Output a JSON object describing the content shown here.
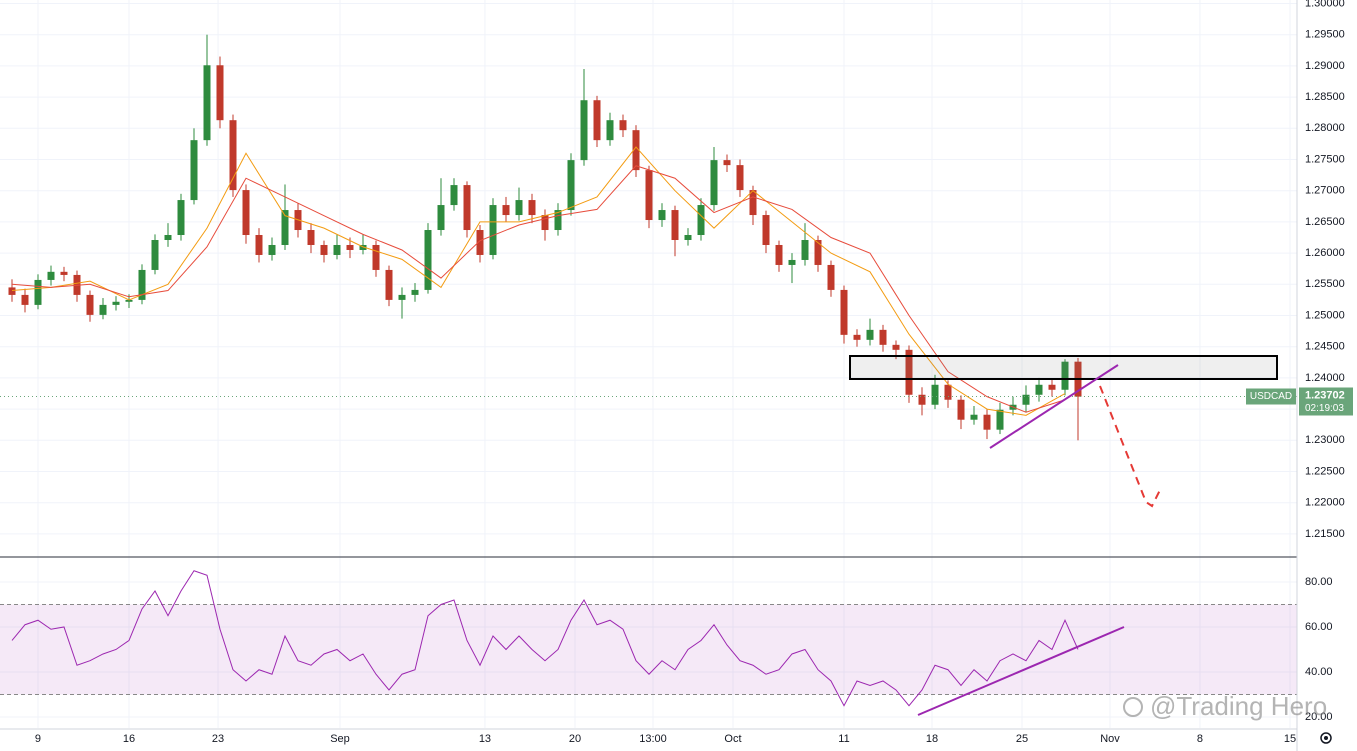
{
  "chart_data": {
    "type": "candlestick",
    "symbol": "USDCAD",
    "last_price": {
      "value": 1.23702,
      "label": "1.23702"
    },
    "countdown": "02:19:03",
    "watermark": "@Trading Hero",
    "up_color": "#2e8b3e",
    "down_color": "#c0392b",
    "label_color": "#6aa57a",
    "grid": true,
    "xlim": [
      -2.923,
      96.846
    ],
    "xticks": [
      {
        "value": 0,
        "label": "9"
      },
      {
        "value": 7,
        "label": "16"
      },
      {
        "value": 13.85,
        "label": "23"
      },
      {
        "value": 23.23,
        "label": "Sep"
      },
      {
        "value": 34.38,
        "label": "13"
      },
      {
        "value": 41.31,
        "label": "20"
      },
      {
        "value": 47.31,
        "label": "13:00"
      },
      {
        "value": 53.46,
        "label": "Oct"
      },
      {
        "value": 62,
        "label": "11"
      },
      {
        "value": 68.77,
        "label": "18"
      },
      {
        "value": 75.69,
        "label": "25"
      },
      {
        "value": 82.46,
        "label": "Nov"
      },
      {
        "value": 89.38,
        "label": "8"
      },
      {
        "value": 96.31,
        "label": "15"
      }
    ],
    "ylim": [
      1.2113,
      1.30056
    ],
    "yticks": [
      {
        "value": 1.3,
        "label": "1.30000"
      },
      {
        "value": 1.295,
        "label": "1.29500"
      },
      {
        "value": 1.29,
        "label": "1.29000"
      },
      {
        "value": 1.285,
        "label": "1.28500"
      },
      {
        "value": 1.28,
        "label": "1.28000"
      },
      {
        "value": 1.275,
        "label": "1.27500"
      },
      {
        "value": 1.27,
        "label": "1.27000"
      },
      {
        "value": 1.265,
        "label": "1.26500"
      },
      {
        "value": 1.26,
        "label": "1.26000"
      },
      {
        "value": 1.255,
        "label": "1.25500"
      },
      {
        "value": 1.25,
        "label": "1.25000"
      },
      {
        "value": 1.245,
        "label": "1.24500"
      },
      {
        "value": 1.24,
        "label": "1.24000"
      },
      {
        "value": 1.235,
        "label": "1.23500"
      },
      {
        "value": 1.23,
        "label": "1.23000"
      },
      {
        "value": 1.225,
        "label": "1.22500"
      },
      {
        "value": 1.22,
        "label": "1.22000"
      },
      {
        "value": 1.215,
        "label": "1.21500"
      }
    ],
    "x": [
      -2,
      -1,
      0,
      1,
      2,
      3,
      4,
      5,
      6,
      7,
      8,
      9,
      10,
      11,
      12,
      13,
      14,
      15,
      16,
      17,
      18,
      19,
      20,
      21,
      22,
      23,
      24,
      25,
      26,
      27,
      28,
      29,
      30,
      31,
      32,
      33,
      34,
      35,
      36,
      37,
      38,
      39,
      40,
      41,
      42,
      43,
      44,
      45,
      46,
      47,
      48,
      49,
      50,
      51,
      52,
      53,
      54,
      55,
      56,
      57,
      58,
      59,
      60,
      61,
      62,
      63,
      64,
      65,
      66,
      67,
      68,
      69,
      70,
      71,
      72,
      73,
      74,
      75,
      76,
      77,
      78,
      79,
      80
    ],
    "candles": [
      [
        1.2545,
        1.2558,
        1.2522,
        1.2533
      ],
      [
        1.2533,
        1.2543,
        1.2505,
        1.2517
      ],
      [
        1.2517,
        1.2566,
        1.251,
        1.2557
      ],
      [
        1.2557,
        1.258,
        1.2548,
        1.257
      ],
      [
        1.257,
        1.2578,
        1.2555,
        1.2565
      ],
      [
        1.2565,
        1.2572,
        1.2522,
        1.2533
      ],
      [
        1.2533,
        1.254,
        1.249,
        1.2501
      ],
      [
        1.2501,
        1.2528,
        1.2494,
        1.2517
      ],
      [
        1.2517,
        1.2531,
        1.2508,
        1.2522
      ],
      [
        1.2522,
        1.2534,
        1.2512,
        1.2525
      ],
      [
        1.2525,
        1.2582,
        1.2518,
        1.2573
      ],
      [
        1.2573,
        1.263,
        1.2566,
        1.2621
      ],
      [
        1.2621,
        1.2648,
        1.261,
        1.2629
      ],
      [
        1.2629,
        1.2695,
        1.262,
        1.2685
      ],
      [
        1.2685,
        1.28,
        1.2678,
        1.2781
      ],
      [
        1.2781,
        1.295,
        1.2772,
        1.2901
      ],
      [
        1.2901,
        1.2915,
        1.28,
        1.2813
      ],
      [
        1.2813,
        1.2822,
        1.269,
        1.2701
      ],
      [
        1.2701,
        1.271,
        1.2615,
        1.2629
      ],
      [
        1.2629,
        1.264,
        1.2585,
        1.2597
      ],
      [
        1.2597,
        1.2625,
        1.2588,
        1.2613
      ],
      [
        1.2613,
        1.271,
        1.2605,
        1.2669
      ],
      [
        1.2669,
        1.268,
        1.2625,
        1.2637
      ],
      [
        1.2637,
        1.2648,
        1.26,
        1.2613
      ],
      [
        1.2613,
        1.262,
        1.2585,
        1.2597
      ],
      [
        1.2597,
        1.263,
        1.259,
        1.2613
      ],
      [
        1.2613,
        1.2625,
        1.2592,
        1.2605
      ],
      [
        1.2605,
        1.263,
        1.2598,
        1.2613
      ],
      [
        1.2613,
        1.262,
        1.2562,
        1.2573
      ],
      [
        1.2573,
        1.258,
        1.2515,
        1.2525
      ],
      [
        1.2525,
        1.2545,
        1.2495,
        1.2533
      ],
      [
        1.2533,
        1.2552,
        1.2522,
        1.2541
      ],
      [
        1.2541,
        1.2648,
        1.2535,
        1.2637
      ],
      [
        1.2637,
        1.272,
        1.2628,
        1.2677
      ],
      [
        1.2677,
        1.272,
        1.2668,
        1.2709
      ],
      [
        1.2709,
        1.2715,
        1.2625,
        1.2637
      ],
      [
        1.2637,
        1.2645,
        1.2585,
        1.2597
      ],
      [
        1.2597,
        1.2688,
        1.259,
        1.2677
      ],
      [
        1.2677,
        1.269,
        1.265,
        1.2661
      ],
      [
        1.2661,
        1.2705,
        1.2652,
        1.2685
      ],
      [
        1.2685,
        1.2695,
        1.2648,
        1.2661
      ],
      [
        1.2661,
        1.267,
        1.262,
        1.2637
      ],
      [
        1.2637,
        1.268,
        1.2628,
        1.2669
      ],
      [
        1.2669,
        1.276,
        1.266,
        1.2749
      ],
      [
        1.2749,
        1.2895,
        1.274,
        1.2845
      ],
      [
        1.2845,
        1.2852,
        1.277,
        1.2781
      ],
      [
        1.2781,
        1.2825,
        1.2772,
        1.2813
      ],
      [
        1.2813,
        1.2822,
        1.2786,
        1.2797
      ],
      [
        1.2797,
        1.2805,
        1.2722,
        1.2733
      ],
      [
        1.2733,
        1.274,
        1.264,
        1.2653
      ],
      [
        1.2653,
        1.268,
        1.2642,
        1.2669
      ],
      [
        1.2669,
        1.2676,
        1.2595,
        1.2621
      ],
      [
        1.2621,
        1.264,
        1.2612,
        1.2629
      ],
      [
        1.2629,
        1.2688,
        1.262,
        1.2677
      ],
      [
        1.2677,
        1.277,
        1.2668,
        1.2749
      ],
      [
        1.2749,
        1.2758,
        1.273,
        1.2741
      ],
      [
        1.2741,
        1.275,
        1.269,
        1.2701
      ],
      [
        1.2701,
        1.2708,
        1.2645,
        1.2661
      ],
      [
        1.2661,
        1.2668,
        1.26,
        1.2613
      ],
      [
        1.2613,
        1.262,
        1.257,
        1.2581
      ],
      [
        1.2581,
        1.26,
        1.2552,
        1.2589
      ],
      [
        1.2589,
        1.2648,
        1.258,
        1.2621
      ],
      [
        1.2621,
        1.2628,
        1.257,
        1.2581
      ],
      [
        1.2581,
        1.2588,
        1.253,
        1.2541
      ],
      [
        1.2541,
        1.2548,
        1.2455,
        1.2469
      ],
      [
        1.2469,
        1.2478,
        1.245,
        1.2461
      ],
      [
        1.2461,
        1.2495,
        1.2452,
        1.2477
      ],
      [
        1.2477,
        1.2485,
        1.2442,
        1.2453
      ],
      [
        1.2453,
        1.246,
        1.243,
        1.2445
      ],
      [
        1.2445,
        1.2452,
        1.236,
        1.2373
      ],
      [
        1.2373,
        1.2385,
        1.234,
        1.2357
      ],
      [
        1.2357,
        1.2405,
        1.235,
        1.2389
      ],
      [
        1.2389,
        1.2396,
        1.2352,
        1.2365
      ],
      [
        1.2365,
        1.2372,
        1.2318,
        1.2333
      ],
      [
        1.2333,
        1.2355,
        1.2325,
        1.2341
      ],
      [
        1.2341,
        1.235,
        1.2302,
        1.2317
      ],
      [
        1.2317,
        1.236,
        1.231,
        1.2349
      ],
      [
        1.2349,
        1.237,
        1.234,
        1.2357
      ],
      [
        1.2357,
        1.2388,
        1.2345,
        1.2373
      ],
      [
        1.2373,
        1.24,
        1.2362,
        1.2389
      ],
      [
        1.2389,
        1.2398,
        1.237,
        1.2381
      ],
      [
        1.2381,
        1.243,
        1.2372,
        1.2426
      ],
      [
        1.2426,
        1.2432,
        1.23,
        1.237
      ]
    ],
    "moving_averages": [
      {
        "color": "#f39c12",
        "x": [
          -2,
          1,
          4,
          7,
          10,
          13,
          16,
          19,
          22,
          25,
          28,
          31,
          34,
          37,
          40,
          43,
          46,
          49,
          52,
          55,
          58,
          61,
          64,
          67,
          70,
          73,
          76,
          79
        ],
        "values": [
          1.254,
          1.2545,
          1.2555,
          1.2525,
          1.255,
          1.264,
          1.276,
          1.266,
          1.264,
          1.261,
          1.259,
          1.2545,
          1.265,
          1.265,
          1.2665,
          1.269,
          1.277,
          1.27,
          1.264,
          1.27,
          1.265,
          1.26,
          1.257,
          1.247,
          1.239,
          1.235,
          1.234,
          1.2375
        ]
      },
      {
        "color": "#e74c3c",
        "x": [
          -2,
          1,
          4,
          7,
          10,
          13,
          16,
          19,
          22,
          25,
          28,
          31,
          34,
          37,
          40,
          43,
          46,
          49,
          52,
          55,
          58,
          61,
          64,
          67,
          70,
          73,
          76,
          79
        ],
        "values": [
          1.255,
          1.2545,
          1.255,
          1.253,
          1.254,
          1.261,
          1.272,
          1.269,
          1.266,
          1.263,
          1.2605,
          1.256,
          1.262,
          1.2645,
          1.266,
          1.267,
          1.274,
          1.272,
          1.2665,
          1.269,
          1.267,
          1.2625,
          1.26,
          1.25,
          1.241,
          1.237,
          1.2345,
          1.2365
        ]
      }
    ],
    "rsi": {
      "type": "line",
      "color": "#9c27b0",
      "band": [
        30,
        70
      ],
      "band_color": "#9c27b0",
      "ylim": [
        15.1,
        91.1
      ],
      "yticks": [
        {
          "value": 80,
          "label": "80.00"
        },
        {
          "value": 60,
          "label": "60.00"
        },
        {
          "value": 40,
          "label": "40.00"
        },
        {
          "value": 20,
          "label": "20.00"
        }
      ],
      "values": [
        54,
        61,
        63,
        59,
        60,
        43,
        45,
        48,
        50,
        54,
        68,
        76,
        65,
        76,
        85,
        83,
        59,
        41,
        36,
        41,
        39,
        56,
        45,
        43,
        48,
        50,
        45,
        48,
        39,
        32,
        39,
        41,
        65,
        70,
        72,
        54,
        43,
        56,
        50,
        56,
        50,
        45,
        50,
        63,
        72,
        61,
        63,
        59,
        45,
        39,
        45,
        41,
        50,
        54,
        61,
        52,
        45,
        43,
        39,
        41,
        48,
        50,
        41,
        36,
        25,
        36,
        34,
        36,
        32,
        25,
        32,
        43,
        41,
        34,
        41,
        36,
        45,
        48,
        45,
        54,
        50,
        63,
        50
      ]
    }
  }
}
